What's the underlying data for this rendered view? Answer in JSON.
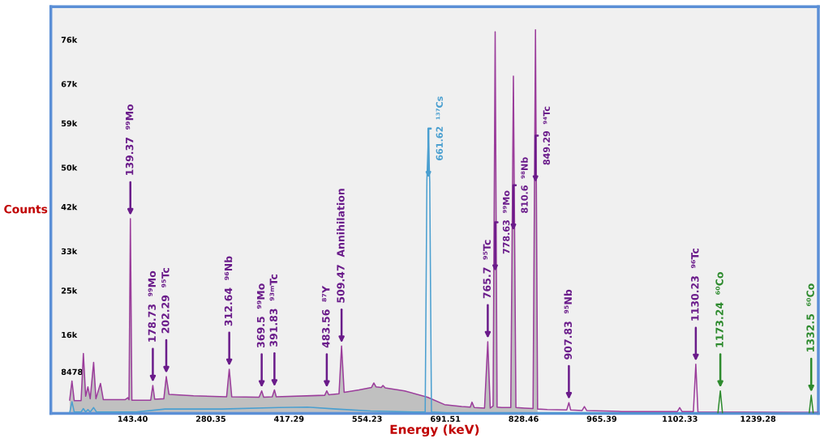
{
  "chart_data": {
    "type": "line",
    "xlabel": "Energy (keV)",
    "ylabel": "Counts",
    "xlim": [
      0,
      1345
    ],
    "ylim": [
      0,
      82700
    ],
    "xticks": [
      {
        "value": 143.4,
        "label": "143.40"
      },
      {
        "value": 280.35,
        "label": "280.35"
      },
      {
        "value": 417.29,
        "label": "417.29"
      },
      {
        "value": 554.23,
        "label": "554.23"
      },
      {
        "value": 691.51,
        "label": "691.51"
      },
      {
        "value": 828.46,
        "label": "828.46"
      },
      {
        "value": 965.39,
        "label": "965.39"
      },
      {
        "value": 1102.33,
        "label": "1102.33"
      },
      {
        "value": 1239.28,
        "label": "1239.28"
      }
    ],
    "yticks": [
      8478,
      {
        "value": 16000,
        "label": "16k"
      },
      {
        "value": 25000,
        "label": "25k"
      },
      {
        "value": 33000,
        "label": "33k"
      },
      {
        "value": 42000,
        "label": "42k"
      },
      {
        "value": 50000,
        "label": "50k"
      },
      {
        "value": 59000,
        "label": "59k"
      },
      {
        "value": 67000,
        "label": "67k"
      },
      {
        "value": 76000,
        "label": "76k"
      }
    ],
    "grid": false,
    "legend": false,
    "series": [
      {
        "type": "area",
        "color": "#c0c0c0",
        "x": [
          33,
          37,
          41,
          53,
          57,
          61,
          65,
          69,
          75,
          79,
          87,
          92,
          130,
          135,
          137,
          139.37,
          142,
          175,
          178.73,
          182,
          198,
          202.29,
          207,
          250,
          308,
          312.64,
          317,
          365,
          369.5,
          373,
          388,
          391.83,
          395,
          480,
          483.56,
          487,
          505,
          509.47,
          514,
          540,
          562,
          566,
          570,
          579,
          582,
          586,
          620,
          660,
          690,
          720,
          735,
          738,
          742,
          760,
          765.7,
          770,
          775,
          778.63,
          782,
          790,
          806,
          810.6,
          815,
          830,
          845,
          849.29,
          853
        ],
        "values": [
          2700,
          6600,
          2600,
          2600,
          12200,
          3500,
          5400,
          3000,
          10400,
          3000,
          6100,
          2800,
          2800,
          3200,
          2800,
          39600,
          2700,
          2700,
          5700,
          2900,
          3000,
          7500,
          3900,
          3600,
          3400,
          9000,
          3400,
          3300,
          4600,
          3300,
          3400,
          4800,
          3400,
          3700,
          4600,
          3800,
          4000,
          13700,
          4300,
          4800,
          5300,
          6200,
          5400,
          5300,
          5700,
          5200,
          4600,
          3300,
          1800,
          1400,
          1300,
          2300,
          1200,
          1100,
          14600,
          1100,
          1500,
          77600,
          1300,
          1200,
          1200,
          68600,
          1200,
          1100,
          1000,
          78000,
          900
        ]
      },
      {
        "color": "#9b3d9b",
        "x": [
          33,
          37,
          41,
          53,
          57,
          61,
          65,
          69,
          75,
          79,
          87,
          92,
          130,
          135,
          137,
          139.37,
          142,
          175,
          178.73,
          182,
          198,
          202.29,
          207,
          250,
          308,
          312.64,
          317,
          365,
          369.5,
          373,
          388,
          391.83,
          395,
          480,
          483.56,
          487,
          505,
          509.47,
          514,
          540,
          562,
          566,
          570,
          579,
          582,
          586,
          620,
          660,
          690,
          720,
          735,
          738,
          742,
          760,
          765.7,
          770,
          775,
          778.63,
          782,
          790,
          806,
          810.6,
          815,
          830,
          845,
          849.29,
          853,
          870,
          904,
          907.83,
          911,
          931,
          935,
          939,
          1000,
          1098,
          1102,
          1106,
          1126,
          1130.23,
          1134,
          1300,
          1345
        ],
        "values": [
          2700,
          6600,
          2600,
          2600,
          12200,
          3500,
          5400,
          3000,
          10400,
          3000,
          6100,
          2800,
          2800,
          3200,
          2800,
          39600,
          2700,
          2700,
          5700,
          2900,
          3000,
          7500,
          3900,
          3600,
          3400,
          9000,
          3400,
          3300,
          4600,
          3300,
          3400,
          4800,
          3400,
          3700,
          4600,
          3800,
          4000,
          13700,
          4300,
          4800,
          5300,
          6200,
          5400,
          5300,
          5700,
          5200,
          4600,
          3300,
          1800,
          1400,
          1300,
          2300,
          1200,
          1100,
          14600,
          1100,
          1500,
          77600,
          1300,
          1200,
          1200,
          68600,
          1200,
          1100,
          1000,
          78000,
          900,
          800,
          700,
          2200,
          700,
          600,
          1400,
          600,
          400,
          400,
          1200,
          400,
          400,
          10000,
          300,
          200,
          200
        ]
      },
      {
        "color": "#4a9fd0",
        "x": [
          33,
          37,
          41,
          53,
          57,
          61,
          65,
          69,
          75,
          80,
          150,
          200,
          300,
          400,
          450,
          500,
          560,
          640,
          656,
          659,
          661.62,
          664,
          667,
          700,
          1345
        ],
        "values": [
          100,
          2400,
          300,
          300,
          1000,
          300,
          800,
          300,
          1200,
          300,
          300,
          900,
          900,
          1200,
          1300,
          900,
          500,
          300,
          300,
          47500,
          56100,
          47000,
          300,
          100,
          100
        ]
      },
      {
        "color": "#2e8b2e",
        "x": [
          1169,
          1173.24,
          1177,
          1250,
          1329,
          1332.5,
          1336
        ],
        "values": [
          100,
          4600,
          100,
          null,
          100,
          3700,
          100
        ]
      }
    ],
    "annotations": [
      {
        "text": "139.37  ⁹⁹Mo",
        "x": 139.37,
        "y": 39600
      },
      {
        "text": "178.73  ⁹⁹Mo",
        "x": 178.73,
        "y": 5700
      },
      {
        "text": "202.29  ⁹⁵Tc",
        "x": 202.29,
        "y": 7500
      },
      {
        "text": "312.64  ⁹⁶Nb",
        "x": 312.64,
        "y": 9000
      },
      {
        "text": "369.5  ⁹⁹Mo",
        "x": 369.5,
        "y": 4600
      },
      {
        "text": "391.83  ⁹³ᵐTc",
        "x": 391.83,
        "y": 4800
      },
      {
        "text": "483.56  ⁸⁷Y",
        "x": 483.56,
        "y": 4600
      },
      {
        "text": "509.47  Annihilation",
        "x": 509.47,
        "y": 13700
      },
      {
        "text": "661.62  ¹³⁷Cs",
        "x": 661.62,
        "y": 47700
      },
      {
        "text": "765.7  ⁹⁵Tc",
        "x": 765.7,
        "y": 14600
      },
      {
        "text": "778.63  ⁹⁹Mo",
        "x": 778.63,
        "y": 28700
      },
      {
        "text": "810.6  ⁹⁸Nb",
        "x": 810.6,
        "y": 37000
      },
      {
        "text": "849.29  ⁹⁴Tc",
        "x": 849.29,
        "y": 46800
      },
      {
        "text": "907.83  ⁹⁵Nb",
        "x": 907.83,
        "y": 2200
      },
      {
        "text": "1130.23  ⁹⁶Tc",
        "x": 1130.23,
        "y": 10000
      },
      {
        "text": "1173.24  ⁶⁰Co",
        "x": 1173.24,
        "y": 4600
      },
      {
        "text": "1332.5  ⁶⁰Co",
        "x": 1332.5,
        "y": 3700
      }
    ]
  }
}
